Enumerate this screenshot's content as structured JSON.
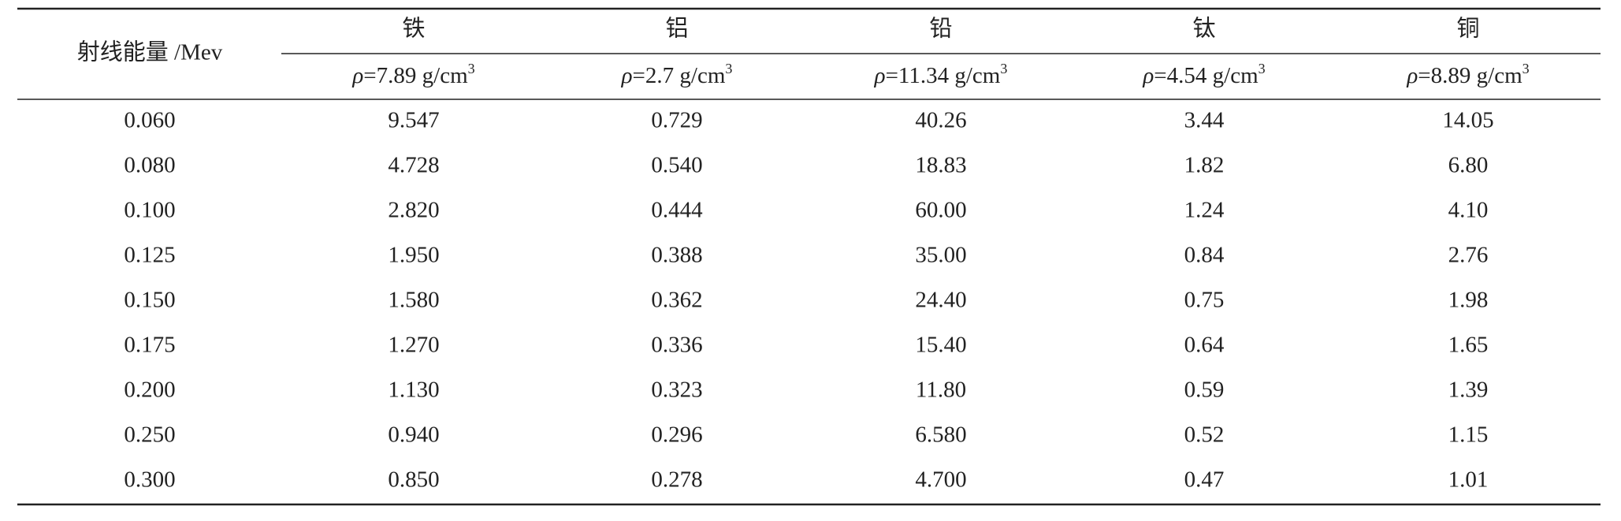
{
  "table": {
    "row_header": "射线能量 /Mev",
    "columns": [
      {
        "name": "铁",
        "symbol": "ρ",
        "density": "=7.89 g/cm",
        "sup": "3"
      },
      {
        "name": "铝",
        "symbol": "ρ",
        "density": "=2.7 g/cm",
        "sup": "3"
      },
      {
        "name": "铅",
        "symbol": "ρ",
        "density": "=11.34 g/cm",
        "sup": "3"
      },
      {
        "name": "钛",
        "symbol": "ρ",
        "density": "=4.54 g/cm",
        "sup": "3"
      },
      {
        "name": "铜",
        "symbol": "ρ",
        "density": "=8.89 g/cm",
        "sup": "3"
      }
    ],
    "rows": [
      [
        "0.060",
        "9.547",
        "0.729",
        "40.26",
        "3.44",
        "14.05"
      ],
      [
        "0.080",
        "4.728",
        "0.540",
        "18.83",
        "1.82",
        "6.80"
      ],
      [
        "0.100",
        "2.820",
        "0.444",
        "60.00",
        "1.24",
        "4.10"
      ],
      [
        "0.125",
        "1.950",
        "0.388",
        "35.00",
        "0.84",
        "2.76"
      ],
      [
        "0.150",
        "1.580",
        "0.362",
        "24.40",
        "0.75",
        "1.98"
      ],
      [
        "0.175",
        "1.270",
        "0.336",
        "15.40",
        "0.64",
        "1.65"
      ],
      [
        "0.200",
        "1.130",
        "0.323",
        "11.80",
        "0.59",
        "1.39"
      ],
      [
        "0.250",
        "0.940",
        "0.296",
        "6.580",
        "0.52",
        "1.15"
      ],
      [
        "0.300",
        "0.850",
        "0.278",
        "4.700",
        "0.47",
        "1.01"
      ]
    ]
  }
}
